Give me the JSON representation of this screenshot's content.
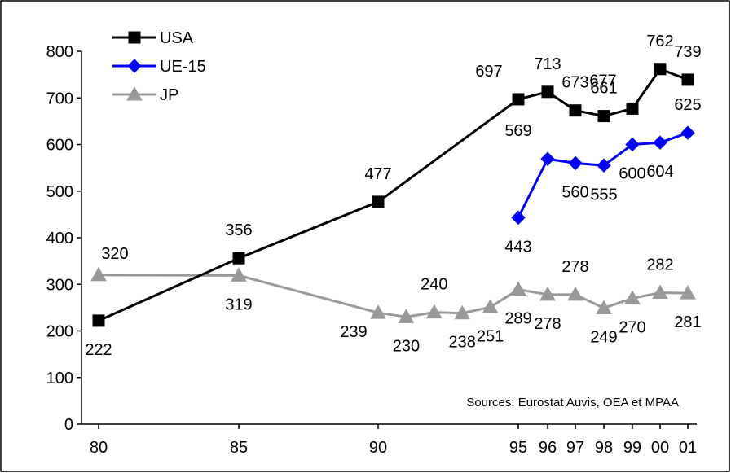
{
  "colors": {
    "background": "#ffffff",
    "frame": "#000000",
    "axis": "#000000",
    "usa": "#000000",
    "ue15": "#0000ff",
    "jp": "#999999"
  },
  "source_note": "Sources: Eurostat Auvis, OEA et MPAA",
  "chart_data": {
    "type": "line",
    "title": "",
    "xlabel": "",
    "ylabel": "",
    "ylim": [
      0,
      800
    ],
    "yticks": [
      0,
      100,
      200,
      300,
      400,
      500,
      600,
      700,
      800
    ],
    "xlim": [
      1980,
      2001
    ],
    "xticks": [
      {
        "x": 1980,
        "label": "80"
      },
      {
        "x": 1985,
        "label": "85"
      },
      {
        "x": 1990,
        "label": "90"
      },
      {
        "x": 1995,
        "label": "95"
      },
      {
        "x": 1996,
        "label": "96"
      },
      {
        "x": 1997,
        "label": "97"
      },
      {
        "x": 1998,
        "label": "98"
      },
      {
        "x": 1999,
        "label": "99"
      },
      {
        "x": 2000,
        "label": "00"
      },
      {
        "x": 2001,
        "label": "01"
      }
    ],
    "grid": false,
    "legend_position": "top-left",
    "series": [
      {
        "name": "USA",
        "color": "#000000",
        "marker": "square",
        "x": [
          1980,
          1985,
          1990,
          1995,
          1996,
          1997,
          1998,
          1999,
          2000,
          2001
        ],
        "values": [
          222,
          356,
          477,
          697,
          713,
          673,
          661,
          677,
          762,
          739
        ],
        "labels": [
          "222",
          "356",
          "477",
          "697",
          "713",
          "673",
          "661",
          "677",
          "762",
          "739"
        ],
        "label_positions": [
          "below",
          "above",
          "above",
          "above-left",
          "above",
          "above",
          "above",
          "above-left",
          "above",
          "above"
        ]
      },
      {
        "name": "UE-15",
        "color": "#0000ff",
        "marker": "diamond",
        "x": [
          1995,
          1996,
          1997,
          1998,
          1999,
          2000,
          2001
        ],
        "values": [
          443,
          569,
          560,
          555,
          600,
          604,
          625
        ],
        "labels": [
          "443",
          "569",
          "560",
          "555",
          "600",
          "604",
          "625"
        ],
        "label_positions": [
          "below",
          "above-left",
          "below",
          "below",
          "below",
          "below",
          "above"
        ]
      },
      {
        "name": "JP",
        "color": "#999999",
        "marker": "triangle",
        "x": [
          1980,
          1985,
          1990,
          1991,
          1992,
          1993,
          1994,
          1995,
          1996,
          1997,
          1998,
          1999,
          2000,
          2001
        ],
        "values": [
          320,
          319,
          239,
          230,
          240,
          238,
          251,
          289,
          278,
          278,
          249,
          270,
          282,
          281
        ],
        "labels": [
          "320",
          "319",
          "239",
          "230",
          "240",
          "238",
          "251",
          "289",
          "278",
          "278",
          "249",
          "270",
          "282",
          "281"
        ],
        "label_positions": [
          "above-right",
          "below",
          "below-left",
          "below",
          "above",
          "below",
          "below",
          "below",
          "below",
          "above",
          "below",
          "below",
          "above",
          "below"
        ]
      }
    ]
  }
}
